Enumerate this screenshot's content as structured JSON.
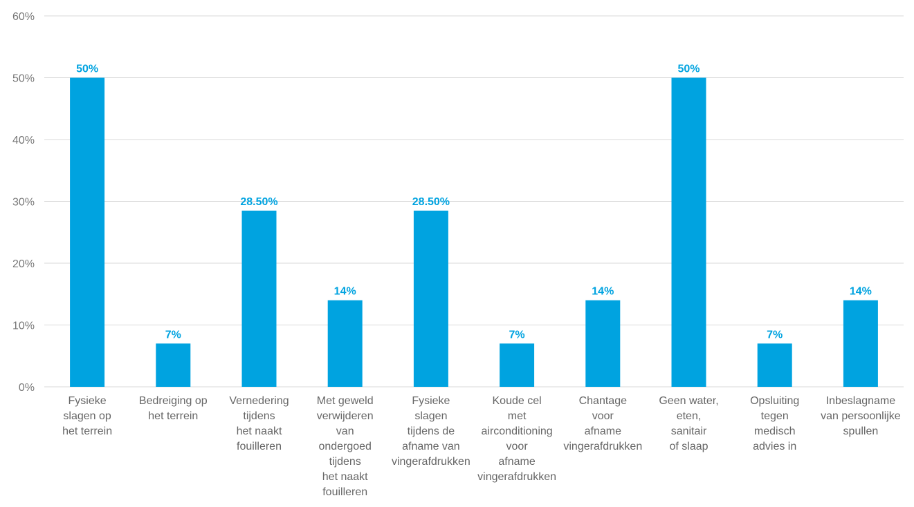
{
  "chart_data": {
    "type": "bar",
    "categories": [
      [
        "Fysieke",
        "slagen op",
        "het terrein"
      ],
      [
        "Bedreiging op",
        "het terrein"
      ],
      [
        "Vernedering",
        "tijdens",
        "het naakt",
        "fouilleren"
      ],
      [
        "Met geweld",
        "verwijderen",
        "van",
        "ondergoed",
        "tijdens",
        "het naakt",
        "fouilleren"
      ],
      [
        "Fysieke",
        "slagen",
        "tijdens de",
        "afname van",
        "vingerafdrukken"
      ],
      [
        "Koude cel",
        "met",
        "airconditioning",
        "voor",
        "afname",
        "vingerafdrukken"
      ],
      [
        "Chantage",
        "voor",
        "afname",
        "vingerafdrukken"
      ],
      [
        "Geen water,",
        "eten,",
        "sanitair",
        "of slaap"
      ],
      [
        "Opsluiting",
        "tegen",
        "medisch",
        "advies in"
      ],
      [
        "Inbeslagname",
        "van persoonlijke",
        "spullen"
      ]
    ],
    "values": [
      50,
      7,
      28.5,
      14,
      28.5,
      7,
      14,
      50,
      7,
      14
    ],
    "data_labels": [
      "50%",
      "7%",
      "28.50%",
      "14%",
      "28.50%",
      "7%",
      "14%",
      "50%",
      "7%",
      "14%"
    ],
    "ylim": [
      0,
      60
    ],
    "yticks": [
      0,
      10,
      20,
      30,
      40,
      50,
      60
    ],
    "ytick_labels": [
      "0%",
      "10%",
      "20%",
      "30%",
      "40%",
      "50%",
      "60%"
    ],
    "title": "",
    "xlabel": "",
    "ylabel": "",
    "grid": true,
    "legend": "none",
    "colors": {
      "bar": "#00a3e0",
      "data_label": "#00a3e0",
      "grid": "#d9d9d9"
    }
  }
}
